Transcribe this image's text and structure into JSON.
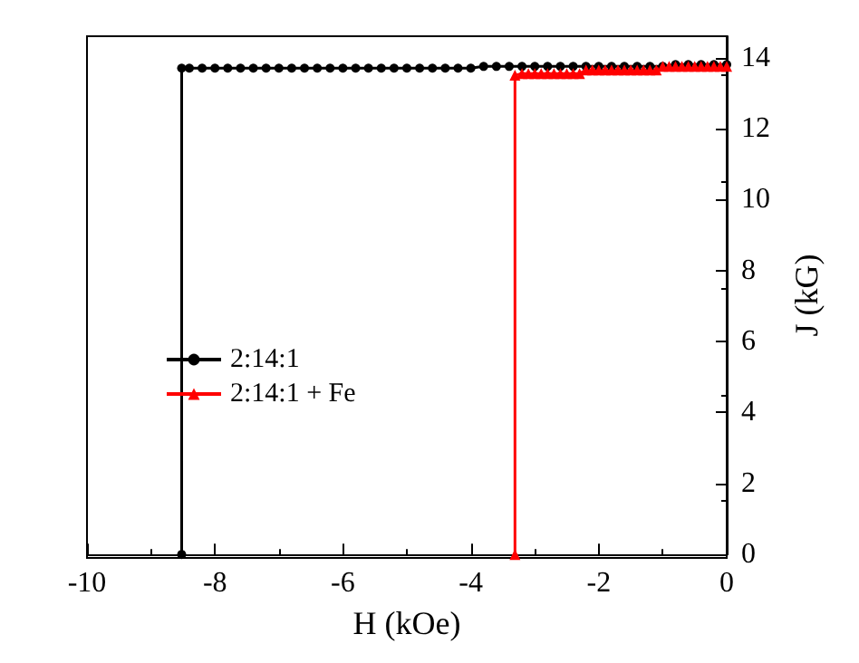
{
  "chart_data": {
    "type": "line",
    "xlabel": "H (kOe)",
    "ylabel": "J (kG)",
    "xlim": [
      -10,
      0
    ],
    "xticks": [
      -10,
      -8,
      -6,
      -4,
      -2,
      0
    ],
    "ylim": [
      0,
      14.6
    ],
    "yticks": [
      0,
      2,
      4,
      6,
      8,
      10,
      12,
      14
    ],
    "grid": false,
    "legend": "center left",
    "line_style": "solid",
    "series": [
      {
        "name": "2:14:1",
        "color": "#000000",
        "marker": "circle",
        "x": [
          -8.52,
          -8.52,
          -8.4,
          -8.2,
          -8.0,
          -7.8,
          -7.6,
          -7.4,
          -7.2,
          -7.0,
          -6.8,
          -6.6,
          -6.4,
          -6.2,
          -6.0,
          -5.8,
          -5.6,
          -5.4,
          -5.2,
          -5.0,
          -4.8,
          -4.6,
          -4.4,
          -4.2,
          -4.0,
          -3.8,
          -3.6,
          -3.4,
          -3.2,
          -3.0,
          -2.8,
          -2.6,
          -2.4,
          -2.2,
          -2.0,
          -1.8,
          -1.6,
          -1.4,
          -1.2,
          -1.0,
          -0.8,
          -0.6,
          -0.4,
          -0.2,
          0
        ],
        "values": [
          0,
          13.7,
          13.7,
          13.7,
          13.7,
          13.7,
          13.7,
          13.7,
          13.7,
          13.7,
          13.7,
          13.7,
          13.7,
          13.7,
          13.7,
          13.7,
          13.7,
          13.7,
          13.7,
          13.7,
          13.7,
          13.7,
          13.7,
          13.7,
          13.7,
          13.75,
          13.75,
          13.75,
          13.75,
          13.75,
          13.75,
          13.75,
          13.75,
          13.75,
          13.75,
          13.75,
          13.75,
          13.75,
          13.75,
          13.75,
          13.8,
          13.8,
          13.8,
          13.8,
          13.8
        ]
      },
      {
        "name": "2:14:1 + Fe",
        "color": "#ff0000",
        "marker": "triangle",
        "x": [
          -3.31,
          -3.31,
          -3.2,
          -3.1,
          -3.0,
          -2.9,
          -2.8,
          -2.7,
          -2.6,
          -2.5,
          -2.4,
          -2.3,
          -2.2,
          -2.1,
          -2.0,
          -1.9,
          -1.8,
          -1.7,
          -1.6,
          -1.5,
          -1.4,
          -1.3,
          -1.2,
          -1.1,
          -1.0,
          -0.9,
          -0.8,
          -0.7,
          -0.6,
          -0.5,
          -0.4,
          -0.3,
          -0.2,
          -0.1,
          0
        ],
        "values": [
          0,
          13.5,
          13.55,
          13.55,
          13.55,
          13.55,
          13.55,
          13.55,
          13.55,
          13.55,
          13.55,
          13.55,
          13.65,
          13.65,
          13.65,
          13.65,
          13.65,
          13.65,
          13.65,
          13.65,
          13.65,
          13.65,
          13.65,
          13.65,
          13.75,
          13.75,
          13.75,
          13.75,
          13.75,
          13.75,
          13.75,
          13.75,
          13.75,
          13.75,
          13.75
        ]
      }
    ]
  }
}
